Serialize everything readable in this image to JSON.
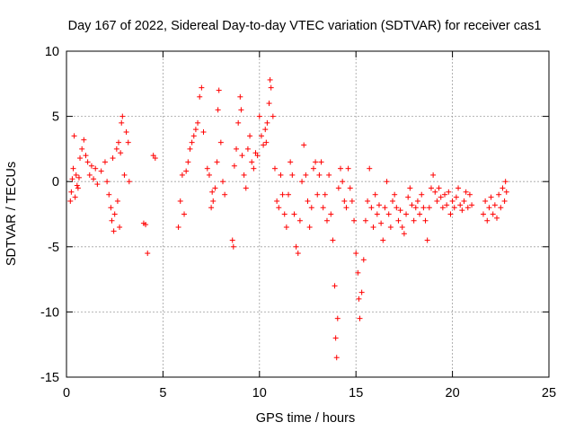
{
  "chart_data": {
    "type": "scatter",
    "title": "Day 167 of 2022, Sidereal Day-to-day VTEC variation (SDTVAR) for receiver cas1",
    "xlabel": "GPS time / hours",
    "ylabel": "SDTVAR / TECUs",
    "xlim": [
      0,
      25
    ],
    "ylim": [
      -15,
      10
    ],
    "xticks": [
      "0",
      "5",
      "10",
      "15",
      "20",
      "25"
    ],
    "yticks": [
      "-15",
      "-10",
      "-5",
      "0",
      "5",
      "10"
    ],
    "xtick_values": [
      0,
      5,
      10,
      15,
      20,
      25
    ],
    "ytick_values": [
      -15,
      -10,
      -5,
      0,
      5,
      10
    ],
    "grid": true,
    "marker": "plus",
    "color": "#ff0000",
    "series": [
      {
        "name": "SDTVAR",
        "points": [
          [
            0.2,
            -1.5
          ],
          [
            0.25,
            -0.8
          ],
          [
            0.3,
            0.2
          ],
          [
            0.35,
            1.0
          ],
          [
            0.4,
            3.5
          ],
          [
            0.45,
            -1.2
          ],
          [
            0.5,
            0.5
          ],
          [
            0.55,
            -0.3
          ],
          [
            0.6,
            -0.5
          ],
          [
            0.65,
            0.3
          ],
          [
            0.7,
            1.8
          ],
          [
            0.8,
            2.5
          ],
          [
            0.9,
            3.2
          ],
          [
            1.0,
            2.0
          ],
          [
            1.1,
            1.5
          ],
          [
            1.2,
            0.5
          ],
          [
            1.3,
            1.2
          ],
          [
            1.4,
            0.2
          ],
          [
            1.5,
            1.0
          ],
          [
            1.6,
            -0.2
          ],
          [
            1.8,
            0.8
          ],
          [
            2.0,
            1.5
          ],
          [
            2.1,
            0.0
          ],
          [
            2.2,
            -1.0
          ],
          [
            2.3,
            -2.0
          ],
          [
            2.35,
            -3.0
          ],
          [
            2.4,
            1.8
          ],
          [
            2.45,
            -3.8
          ],
          [
            2.5,
            -2.5
          ],
          [
            2.6,
            2.5
          ],
          [
            2.65,
            -1.5
          ],
          [
            2.7,
            3.0
          ],
          [
            2.75,
            -3.5
          ],
          [
            2.8,
            2.2
          ],
          [
            2.85,
            4.5
          ],
          [
            2.9,
            5.0
          ],
          [
            3.0,
            0.5
          ],
          [
            3.1,
            3.8
          ],
          [
            3.2,
            3.0
          ],
          [
            3.25,
            0.0
          ],
          [
            4.0,
            -3.2
          ],
          [
            4.1,
            -3.3
          ],
          [
            4.2,
            -5.5
          ],
          [
            4.5,
            2.0
          ],
          [
            4.6,
            1.8
          ],
          [
            5.8,
            -3.5
          ],
          [
            5.9,
            -1.5
          ],
          [
            6.0,
            0.5
          ],
          [
            6.1,
            -2.5
          ],
          [
            6.2,
            0.8
          ],
          [
            6.3,
            1.5
          ],
          [
            6.4,
            2.5
          ],
          [
            6.5,
            3.0
          ],
          [
            6.6,
            3.5
          ],
          [
            6.7,
            4.0
          ],
          [
            6.8,
            4.5
          ],
          [
            6.9,
            6.5
          ],
          [
            7.0,
            7.2
          ],
          [
            7.1,
            3.8
          ],
          [
            7.3,
            1.0
          ],
          [
            7.4,
            0.5
          ],
          [
            7.5,
            -2.0
          ],
          [
            7.55,
            -0.8
          ],
          [
            7.6,
            -1.5
          ],
          [
            7.7,
            -0.5
          ],
          [
            7.8,
            1.5
          ],
          [
            7.85,
            5.5
          ],
          [
            7.9,
            7.0
          ],
          [
            8.0,
            3.0
          ],
          [
            8.1,
            0.0
          ],
          [
            8.2,
            -1.0
          ],
          [
            8.6,
            -4.5
          ],
          [
            8.65,
            -5.0
          ],
          [
            8.7,
            1.2
          ],
          [
            8.8,
            2.5
          ],
          [
            8.9,
            4.5
          ],
          [
            9.0,
            6.5
          ],
          [
            9.05,
            5.5
          ],
          [
            9.1,
            2.0
          ],
          [
            9.2,
            0.5
          ],
          [
            9.3,
            -0.5
          ],
          [
            9.4,
            2.5
          ],
          [
            9.5,
            3.5
          ],
          [
            9.6,
            1.5
          ],
          [
            9.7,
            1.0
          ],
          [
            9.8,
            2.2
          ],
          [
            9.9,
            2.0
          ],
          [
            10.0,
            5.0
          ],
          [
            10.1,
            3.5
          ],
          [
            10.2,
            2.8
          ],
          [
            10.3,
            4.0
          ],
          [
            10.35,
            3.0
          ],
          [
            10.4,
            4.5
          ],
          [
            10.5,
            6.0
          ],
          [
            10.55,
            7.8
          ],
          [
            10.6,
            7.2
          ],
          [
            10.7,
            5.0
          ],
          [
            10.8,
            1.0
          ],
          [
            10.9,
            -1.5
          ],
          [
            11.0,
            -2.0
          ],
          [
            11.1,
            0.5
          ],
          [
            11.2,
            -1.0
          ],
          [
            11.3,
            -2.5
          ],
          [
            11.4,
            -3.5
          ],
          [
            11.5,
            -1.0
          ],
          [
            11.6,
            1.5
          ],
          [
            11.7,
            0.5
          ],
          [
            11.8,
            -2.5
          ],
          [
            11.9,
            -5.0
          ],
          [
            12.0,
            -5.5
          ],
          [
            12.1,
            -3.0
          ],
          [
            12.2,
            0.0
          ],
          [
            12.3,
            2.8
          ],
          [
            12.4,
            0.5
          ],
          [
            12.5,
            -1.5
          ],
          [
            12.6,
            -3.5
          ],
          [
            12.7,
            -2.0
          ],
          [
            12.8,
            1.0
          ],
          [
            12.9,
            1.5
          ],
          [
            13.0,
            -1.0
          ],
          [
            13.1,
            0.5
          ],
          [
            13.2,
            1.5
          ],
          [
            13.3,
            -2.0
          ],
          [
            13.4,
            -1.0
          ],
          [
            13.5,
            -3.0
          ],
          [
            13.6,
            0.5
          ],
          [
            13.7,
            -2.5
          ],
          [
            13.8,
            -4.5
          ],
          [
            13.9,
            -8.0
          ],
          [
            13.95,
            -12.0
          ],
          [
            14.0,
            -13.5
          ],
          [
            14.05,
            -10.5
          ],
          [
            14.1,
            -0.5
          ],
          [
            14.2,
            1.0
          ],
          [
            14.3,
            0.0
          ],
          [
            14.4,
            -1.5
          ],
          [
            14.5,
            -2.0
          ],
          [
            14.6,
            1.0
          ],
          [
            14.7,
            -0.5
          ],
          [
            14.8,
            -1.5
          ],
          [
            14.9,
            -3.0
          ],
          [
            15.0,
            -5.5
          ],
          [
            15.1,
            -7.0
          ],
          [
            15.15,
            -9.0
          ],
          [
            15.2,
            -10.5
          ],
          [
            15.3,
            -8.5
          ],
          [
            15.4,
            -6.0
          ],
          [
            15.5,
            -3.0
          ],
          [
            15.6,
            -1.5
          ],
          [
            15.7,
            1.0
          ],
          [
            15.8,
            -2.0
          ],
          [
            15.9,
            -3.5
          ],
          [
            16.0,
            -1.0
          ],
          [
            16.1,
            -2.5
          ],
          [
            16.2,
            -1.8
          ],
          [
            16.3,
            -3.2
          ],
          [
            16.4,
            -4.5
          ],
          [
            16.5,
            -2.0
          ],
          [
            16.6,
            0.0
          ],
          [
            16.7,
            -2.5
          ],
          [
            16.8,
            -3.5
          ],
          [
            16.9,
            -1.5
          ],
          [
            17.0,
            -1.0
          ],
          [
            17.1,
            -2.0
          ],
          [
            17.2,
            -3.0
          ],
          [
            17.3,
            -2.2
          ],
          [
            17.4,
            -3.5
          ],
          [
            17.5,
            -4.0
          ],
          [
            17.6,
            -2.5
          ],
          [
            17.7,
            -1.2
          ],
          [
            17.8,
            -0.5
          ],
          [
            17.9,
            -1.8
          ],
          [
            18.0,
            -3.0
          ],
          [
            18.1,
            -2.0
          ],
          [
            18.2,
            -1.5
          ],
          [
            18.3,
            -2.5
          ],
          [
            18.4,
            -1.0
          ],
          [
            18.5,
            -2.0
          ],
          [
            18.6,
            -3.0
          ],
          [
            18.7,
            -4.5
          ],
          [
            18.8,
            -2.0
          ],
          [
            18.9,
            -0.5
          ],
          [
            19.0,
            0.5
          ],
          [
            19.1,
            -0.8
          ],
          [
            19.2,
            -1.5
          ],
          [
            19.3,
            -0.5
          ],
          [
            19.4,
            -1.2
          ],
          [
            19.5,
            -2.0
          ],
          [
            19.6,
            -1.0
          ],
          [
            19.7,
            -1.8
          ],
          [
            19.8,
            -0.8
          ],
          [
            19.9,
            -2.5
          ],
          [
            20.0,
            -1.5
          ],
          [
            20.1,
            -2.0
          ],
          [
            20.2,
            -1.2
          ],
          [
            20.3,
            -0.5
          ],
          [
            20.4,
            -1.8
          ],
          [
            20.5,
            -2.2
          ],
          [
            20.6,
            -1.5
          ],
          [
            20.7,
            -0.8
          ],
          [
            20.8,
            -2.0
          ],
          [
            20.9,
            -1.0
          ],
          [
            21.0,
            -1.8
          ],
          [
            21.6,
            -2.5
          ],
          [
            21.7,
            -1.5
          ],
          [
            21.8,
            -3.0
          ],
          [
            21.9,
            -2.0
          ],
          [
            22.0,
            -1.2
          ],
          [
            22.1,
            -2.5
          ],
          [
            22.2,
            -1.8
          ],
          [
            22.3,
            -2.8
          ],
          [
            22.4,
            -1.0
          ],
          [
            22.5,
            -2.0
          ],
          [
            22.6,
            -0.5
          ],
          [
            22.7,
            -1.5
          ],
          [
            22.75,
            0.0
          ],
          [
            22.8,
            -0.8
          ]
        ]
      }
    ]
  }
}
